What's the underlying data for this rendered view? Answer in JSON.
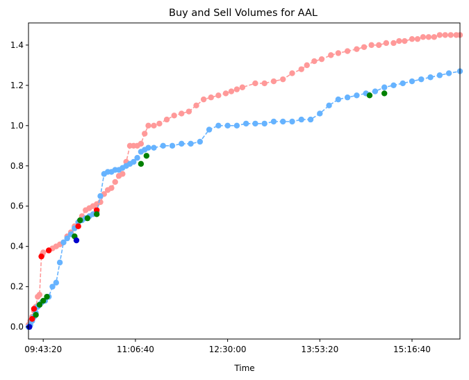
{
  "chart_data": {
    "type": "scatter",
    "title": "Buy and Sell Volumes for AAL",
    "xlabel": "Time",
    "ylabel": "",
    "x_ticks": [
      "09:43:20",
      "11:06:40",
      "12:30:00",
      "13:53:20",
      "15:16:40"
    ],
    "x_tick_seconds": [
      34999,
      40000,
      45000,
      50000,
      55000
    ],
    "xlim_seconds": [
      34200,
      57600
    ],
    "ylim": [
      -0.06,
      1.51
    ],
    "y_ticks": [
      0.0,
      0.2,
      0.4,
      0.6,
      0.8,
      1.0,
      1.2,
      1.4
    ],
    "y_tick_labels": [
      "0.0",
      "0.2",
      "0.4",
      "0.6",
      "0.8",
      "1.0",
      "1.2",
      "1.4"
    ],
    "grid": false,
    "series": [
      {
        "role": "sell",
        "color": "#ff9999",
        "line_style": "dashed",
        "x_seconds": [
          34200,
          34300,
          34400,
          34500,
          34600,
          34700,
          34800,
          34900,
          34950,
          35000,
          35300,
          35500,
          35700,
          35900,
          36100,
          36300,
          36500,
          36700,
          36900,
          37100,
          37300,
          37500,
          37700,
          37900,
          38100,
          38300,
          38500,
          38700,
          38900,
          39100,
          39300,
          39500,
          39700,
          39900,
          40100,
          40300,
          40500,
          40700,
          41000,
          41300,
          41700,
          42100,
          42500,
          42900,
          43300,
          43700,
          44100,
          44500,
          44900,
          45200,
          45500,
          45800,
          46500,
          47000,
          47500,
          48000,
          48500,
          49000,
          49300,
          49700,
          50100,
          50600,
          51000,
          51500,
          52000,
          52400,
          52800,
          53200,
          53600,
          54000,
          54300,
          54600,
          55000,
          55300,
          55600,
          55900,
          56200,
          56500,
          56800,
          57100,
          57400,
          57600
        ],
        "values": [
          0.01,
          0.03,
          0.05,
          0.08,
          0.1,
          0.15,
          0.16,
          0.35,
          0.36,
          0.37,
          0.38,
          0.39,
          0.4,
          0.41,
          0.42,
          0.45,
          0.47,
          0.5,
          0.52,
          0.55,
          0.58,
          0.59,
          0.6,
          0.61,
          0.62,
          0.66,
          0.68,
          0.69,
          0.72,
          0.75,
          0.76,
          0.82,
          0.9,
          0.9,
          0.9,
          0.91,
          0.96,
          1.0,
          1.0,
          1.01,
          1.03,
          1.05,
          1.06,
          1.07,
          1.1,
          1.13,
          1.14,
          1.15,
          1.16,
          1.17,
          1.18,
          1.19,
          1.21,
          1.21,
          1.22,
          1.23,
          1.26,
          1.28,
          1.3,
          1.32,
          1.33,
          1.35,
          1.36,
          1.37,
          1.38,
          1.39,
          1.4,
          1.4,
          1.41,
          1.41,
          1.42,
          1.42,
          1.43,
          1.43,
          1.44,
          1.44,
          1.44,
          1.45,
          1.45,
          1.45,
          1.45,
          1.45
        ]
      },
      {
        "role": "buy",
        "color": "#66b3ff",
        "line_style": "dashed",
        "x_seconds": [
          34200,
          34300,
          34400,
          34500,
          34600,
          34700,
          34800,
          34900,
          35100,
          35300,
          35500,
          35700,
          35900,
          36100,
          36300,
          36500,
          36700,
          36900,
          37100,
          37300,
          37500,
          37700,
          37900,
          38100,
          38300,
          38500,
          38700,
          38900,
          39100,
          39300,
          39500,
          39700,
          39900,
          40100,
          40300,
          40500,
          40700,
          41000,
          41500,
          42000,
          42500,
          43000,
          43500,
          44000,
          44500,
          45000,
          45500,
          46000,
          46500,
          47000,
          47500,
          48000,
          48500,
          49000,
          49500,
          50000,
          50500,
          51000,
          51500,
          52000,
          52500,
          53000,
          53500,
          54000,
          54500,
          55000,
          55500,
          56000,
          56500,
          57000,
          57600
        ],
        "values": [
          0.0,
          0.01,
          0.03,
          0.05,
          0.07,
          0.1,
          0.11,
          0.12,
          0.13,
          0.15,
          0.2,
          0.22,
          0.32,
          0.42,
          0.44,
          0.46,
          0.49,
          0.52,
          0.53,
          0.54,
          0.55,
          0.56,
          0.57,
          0.65,
          0.76,
          0.77,
          0.77,
          0.78,
          0.78,
          0.79,
          0.8,
          0.81,
          0.82,
          0.84,
          0.87,
          0.88,
          0.89,
          0.89,
          0.9,
          0.9,
          0.91,
          0.91,
          0.92,
          0.98,
          1.0,
          1.0,
          1.0,
          1.01,
          1.01,
          1.01,
          1.02,
          1.02,
          1.02,
          1.03,
          1.03,
          1.06,
          1.1,
          1.13,
          1.14,
          1.15,
          1.16,
          1.17,
          1.19,
          1.2,
          1.21,
          1.22,
          1.23,
          1.24,
          1.25,
          1.26,
          1.27
        ]
      }
    ],
    "markers": [
      {
        "color": "#ff0000",
        "x_seconds": [
          34400,
          34500,
          34900,
          35300,
          36900,
          37900
        ],
        "values": [
          0.04,
          0.09,
          0.35,
          0.38,
          0.5,
          0.58
        ]
      },
      {
        "color": "#008000",
        "x_seconds": [
          34600,
          34800,
          35000,
          35200,
          36700,
          37000,
          37400,
          37900,
          40300,
          40600,
          52700,
          53500
        ],
        "values": [
          0.06,
          0.11,
          0.13,
          0.15,
          0.45,
          0.53,
          0.54,
          0.56,
          0.81,
          0.85,
          1.15,
          1.16
        ]
      },
      {
        "color": "#0000cc",
        "x_seconds": [
          34250,
          36800
        ],
        "values": [
          0.0,
          0.43
        ]
      }
    ]
  }
}
